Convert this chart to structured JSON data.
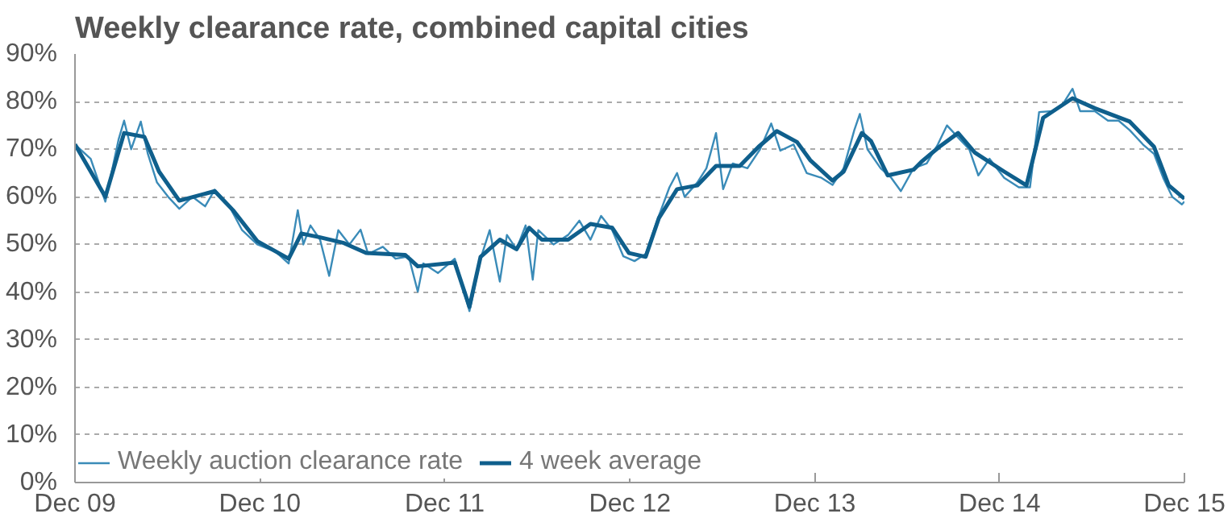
{
  "chart_data": {
    "type": "line",
    "title": "Weekly clearance rate, combined capital cities",
    "xlim": [
      "2009-12-01",
      "2015-12-01"
    ],
    "xticks": [
      {
        "value": "2009-12-01",
        "label": "Dec 09"
      },
      {
        "value": "2010-12-01",
        "label": "Dec 10"
      },
      {
        "value": "2011-12-01",
        "label": "Dec 11"
      },
      {
        "value": "2012-12-01",
        "label": "Dec 12"
      },
      {
        "value": "2013-12-01",
        "label": "Dec 13"
      },
      {
        "value": "2014-12-01",
        "label": "Dec 14"
      },
      {
        "value": "2015-12-01",
        "label": "Dec 15"
      }
    ],
    "ylim": [
      0,
      90
    ],
    "yticks": [
      {
        "value": 0,
        "label": "0%"
      },
      {
        "value": 10,
        "label": "10%"
      },
      {
        "value": 20,
        "label": "20%"
      },
      {
        "value": 30,
        "label": "30%"
      },
      {
        "value": 40,
        "label": "40%"
      },
      {
        "value": 50,
        "label": "50%"
      },
      {
        "value": 60,
        "label": "60%"
      },
      {
        "value": 70,
        "label": "70%"
      },
      {
        "value": 80,
        "label": "80%"
      },
      {
        "value": 90,
        "label": "90%"
      }
    ],
    "grid": "y",
    "legend": "bottom left",
    "line_style": "solid",
    "marker": "none",
    "series": [
      {
        "name": "Weekly auction clearance rate",
        "color": "#3a8bb8",
        "x": [
          "2009-12-01",
          "2010-01-01",
          "2010-01-30",
          "2010-02-25",
          "2010-03-08",
          "2010-03-22",
          "2010-04-10",
          "2010-04-24",
          "2010-05-12",
          "2010-06-03",
          "2010-06-25",
          "2010-07-21",
          "2010-08-15",
          "2010-09-03",
          "2010-10-02",
          "2010-10-27",
          "2010-11-26",
          "2011-01-01",
          "2011-01-27",
          "2011-02-14",
          "2011-02-25",
          "2011-03-11",
          "2011-03-30",
          "2011-04-17",
          "2011-05-05",
          "2011-05-27",
          "2011-06-18",
          "2011-07-03",
          "2011-08-01",
          "2011-08-26",
          "2011-09-21",
          "2011-10-09",
          "2011-10-20",
          "2011-11-18",
          "2011-12-21",
          "2012-01-19",
          "2012-02-10",
          "2012-02-28",
          "2012-03-19",
          "2012-04-02",
          "2012-04-21",
          "2012-05-09",
          "2012-05-23",
          "2012-06-03",
          "2012-07-03",
          "2012-08-01",
          "2012-08-23",
          "2012-09-14",
          "2012-10-05",
          "2012-10-27",
          "2012-11-18",
          "2012-12-10",
          "2013-01-01",
          "2013-01-27",
          "2013-02-17",
          "2013-03-04",
          "2013-03-19",
          "2013-04-13",
          "2013-05-01",
          "2013-05-20",
          "2013-06-03",
          "2013-06-22",
          "2013-07-21",
          "2013-08-15",
          "2013-09-06",
          "2013-09-24",
          "2013-10-20",
          "2013-11-15",
          "2013-12-14",
          "2014-01-05",
          "2014-01-27",
          "2014-02-17",
          "2014-02-28",
          "2014-03-15",
          "2014-04-10",
          "2014-05-01",
          "2014-05-20",
          "2014-06-14",
          "2014-07-10",
          "2014-08-01",
          "2014-08-19",
          "2014-09-14",
          "2014-10-02",
          "2014-10-20",
          "2014-11-11",
          "2014-12-10",
          "2015-01-08",
          "2015-01-30",
          "2015-02-17",
          "2015-03-15",
          "2015-04-02",
          "2015-04-24",
          "2015-05-09",
          "2015-06-07",
          "2015-07-03",
          "2015-07-24",
          "2015-08-15",
          "2015-09-10",
          "2015-10-02",
          "2015-10-20",
          "2015-11-07",
          "2015-11-26",
          "2015-12-01"
        ],
        "values": [
          71,
          68,
          59,
          72,
          76,
          70,
          75.8,
          69,
          63,
          60,
          57.5,
          60,
          58,
          61.5,
          58,
          53,
          50,
          48.5,
          46,
          57.2,
          50,
          54,
          51,
          43.4,
          53,
          50,
          53.1,
          48,
          49.5,
          47,
          47.5,
          40.1,
          46,
          44,
          47,
          36,
          47,
          53,
          42.2,
          52,
          49,
          54,
          42.6,
          53,
          50,
          52,
          55,
          51,
          56,
          53,
          47.5,
          46.5,
          48,
          56,
          62,
          65,
          60,
          63,
          66,
          73.4,
          61.6,
          67,
          66,
          70,
          75.4,
          69.7,
          71,
          65,
          64,
          62.5,
          66,
          74,
          77.4,
          70,
          66,
          64,
          61.2,
          66,
          67,
          71,
          75,
          72,
          70,
          64.5,
          68,
          64,
          62,
          62,
          77.8,
          78,
          79,
          82.7,
          78,
          78,
          76,
          76,
          74,
          71,
          69,
          64,
          60,
          58.4,
          59
        ]
      },
      {
        "name": "4 week average",
        "color": "#0f5f8c",
        "x": [
          "2009-12-01",
          "2010-01-30",
          "2010-03-08",
          "2010-04-17",
          "2010-05-16",
          "2010-06-25",
          "2010-09-03",
          "2010-10-09",
          "2010-11-26",
          "2011-01-27",
          "2011-02-21",
          "2011-03-30",
          "2011-05-16",
          "2011-06-29",
          "2011-09-14",
          "2011-10-09",
          "2011-12-21",
          "2012-01-19",
          "2012-02-10",
          "2012-03-19",
          "2012-04-21",
          "2012-05-16",
          "2012-06-10",
          "2012-08-01",
          "2012-09-14",
          "2012-10-27",
          "2012-11-29",
          "2013-01-01",
          "2013-01-27",
          "2013-03-04",
          "2013-04-13",
          "2013-05-20",
          "2013-07-06",
          "2013-08-12",
          "2013-09-17",
          "2013-10-27",
          "2013-11-22",
          "2014-01-05",
          "2014-01-27",
          "2014-03-04",
          "2014-03-22",
          "2014-04-24",
          "2014-06-14",
          "2014-06-29",
          "2014-08-04",
          "2014-09-10",
          "2014-10-13",
          "2014-12-10",
          "2015-01-23",
          "2015-02-25",
          "2015-04-24",
          "2015-06-07",
          "2015-08-15",
          "2015-10-02",
          "2015-10-31",
          "2015-12-01"
        ],
        "values": [
          71,
          60,
          73.4,
          72.6,
          65.3,
          59.2,
          61.2,
          57.2,
          50.7,
          47,
          52.3,
          51.5,
          50.3,
          48.2,
          47.8,
          45.4,
          46.2,
          36.9,
          47.4,
          51,
          49,
          53.5,
          51,
          51,
          54.3,
          53.5,
          48.2,
          47.4,
          55.5,
          61.6,
          62.4,
          66.5,
          66.5,
          70.5,
          73.8,
          71.5,
          67.7,
          63.4,
          65.3,
          73.4,
          71.7,
          64.5,
          65.7,
          67.3,
          70.5,
          73.4,
          69.3,
          65.3,
          62.4,
          76.6,
          80.7,
          78.6,
          75.8,
          70.5,
          62.4,
          59.6
        ]
      }
    ]
  }
}
